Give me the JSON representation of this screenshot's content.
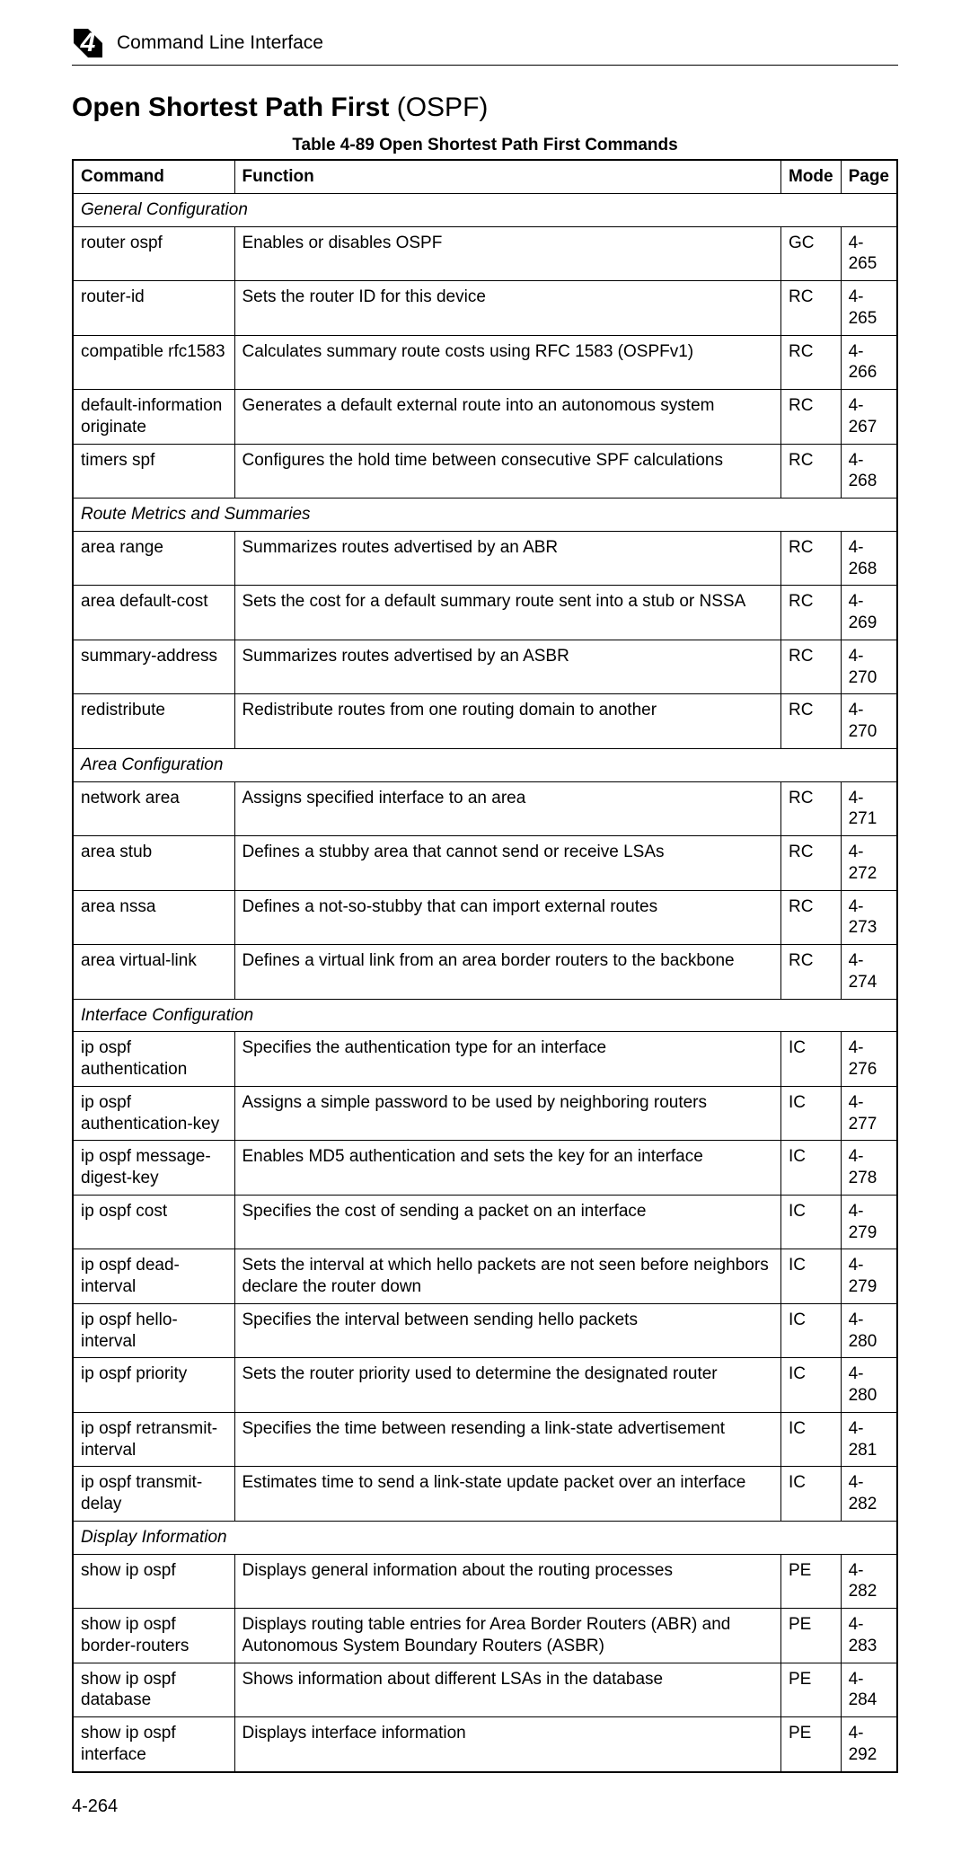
{
  "header": {
    "chapter_number": "4",
    "breadcrumb": "Command Line Interface"
  },
  "title_bold": "Open Shortest Path First",
  "title_paren": " (OSPF)",
  "table_caption": "Table 4-89   Open Shortest Path First Commands",
  "columns": {
    "c0": "Command",
    "c1": "Function",
    "c2": "Mode",
    "c3": "Page"
  },
  "sections": [
    {
      "label": "General Configuration",
      "rows": [
        {
          "cmd": "router ospf",
          "fn": "Enables or disables OSPF",
          "mode": "GC",
          "page": "4-265"
        },
        {
          "cmd": "router-id",
          "fn": "Sets the router ID for this device",
          "mode": "RC",
          "page": "4-265"
        },
        {
          "cmd": "compatible rfc1583",
          "fn": "Calculates summary route costs using RFC 1583 (OSPFv1)",
          "mode": "RC",
          "page": "4-266"
        },
        {
          "cmd": "default-information originate",
          "fn": "Generates a default external route into an autonomous system",
          "mode": "RC",
          "page": "4-267"
        },
        {
          "cmd": "timers spf",
          "fn": "Configures the hold time between consecutive SPF calculations",
          "mode": "RC",
          "page": "4-268"
        }
      ]
    },
    {
      "label": "Route Metrics and Summaries",
      "rows": [
        {
          "cmd": "area range",
          "fn": "Summarizes routes advertised by an ABR",
          "mode": "RC",
          "page": "4-268"
        },
        {
          "cmd": "area default-cost",
          "fn": "Sets the cost for a default summary route sent into a stub or NSSA",
          "mode": "RC",
          "page": "4-269"
        },
        {
          "cmd": "summary-address",
          "fn": "Summarizes routes advertised by an ASBR",
          "mode": "RC",
          "page": "4-270"
        },
        {
          "cmd": "redistribute",
          "fn": "Redistribute routes from one routing domain to another",
          "mode": "RC",
          "page": "4-270"
        }
      ]
    },
    {
      "label": "Area Configuration",
      "rows": [
        {
          "cmd": "network area",
          "fn": "Assigns specified interface to an area",
          "mode": "RC",
          "page": "4-271"
        },
        {
          "cmd": "area stub",
          "fn": "Defines a stubby area that cannot send or receive LSAs",
          "mode": "RC",
          "page": "4-272"
        },
        {
          "cmd": "area nssa",
          "fn": "Defines a not-so-stubby that can import external routes",
          "mode": "RC",
          "page": "4-273"
        },
        {
          "cmd": "area virtual-link",
          "fn": "Defines a virtual link from an area border routers to the backbone",
          "mode": "RC",
          "page": "4-274"
        }
      ]
    },
    {
      "label": "Interface Configuration",
      "rows": [
        {
          "cmd": "ip ospf authentication",
          "fn": "Specifies the authentication type for an interface",
          "mode": "IC",
          "page": "4-276"
        },
        {
          "cmd": "ip ospf authentication-key",
          "fn": "Assigns a simple password to be used by neighboring routers",
          "mode": "IC",
          "page": "4-277"
        },
        {
          "cmd": "ip ospf message-digest-key",
          "fn": "Enables MD5 authentication and sets the key for an interface",
          "mode": "IC",
          "page": "4-278"
        },
        {
          "cmd": "ip ospf cost",
          "fn": "Specifies the cost of sending a packet on an interface",
          "mode": "IC",
          "page": "4-279"
        },
        {
          "cmd": "ip ospf dead-interval",
          "fn": "Sets the interval at which hello packets are not seen before neighbors declare the router down",
          "mode": "IC",
          "page": "4-279"
        },
        {
          "cmd": "ip ospf hello-interval",
          "fn": "Specifies the interval between sending hello packets",
          "mode": "IC",
          "page": "4-280"
        },
        {
          "cmd": "ip ospf priority",
          "fn": "Sets the router priority used to determine the designated router",
          "mode": "IC",
          "page": "4-280"
        },
        {
          "cmd": "ip ospf retransmit-interval",
          "fn": "Specifies the time between resending a link-state advertisement",
          "mode": "IC",
          "page": "4-281"
        },
        {
          "cmd": "ip ospf transmit-delay",
          "fn": "Estimates time to send a link-state update packet over an interface",
          "mode": "IC",
          "page": "4-282"
        }
      ]
    },
    {
      "label": "Display Information",
      "rows": [
        {
          "cmd": "show ip ospf",
          "fn": "Displays general information about the routing processes",
          "mode": "PE",
          "page": "4-282"
        },
        {
          "cmd": "show ip ospf border-routers",
          "fn": "Displays routing table entries for Area Border Routers (ABR) and Autonomous System Boundary Routers (ASBR)",
          "mode": "PE",
          "page": "4-283"
        },
        {
          "cmd": "show ip ospf database",
          "fn": "Shows information about different LSAs in the database",
          "mode": "PE",
          "page": "4-284"
        },
        {
          "cmd": "show ip ospf interface",
          "fn": "Displays interface information",
          "mode": "PE",
          "page": "4-292"
        }
      ]
    }
  ],
  "page_number": "4-264"
}
